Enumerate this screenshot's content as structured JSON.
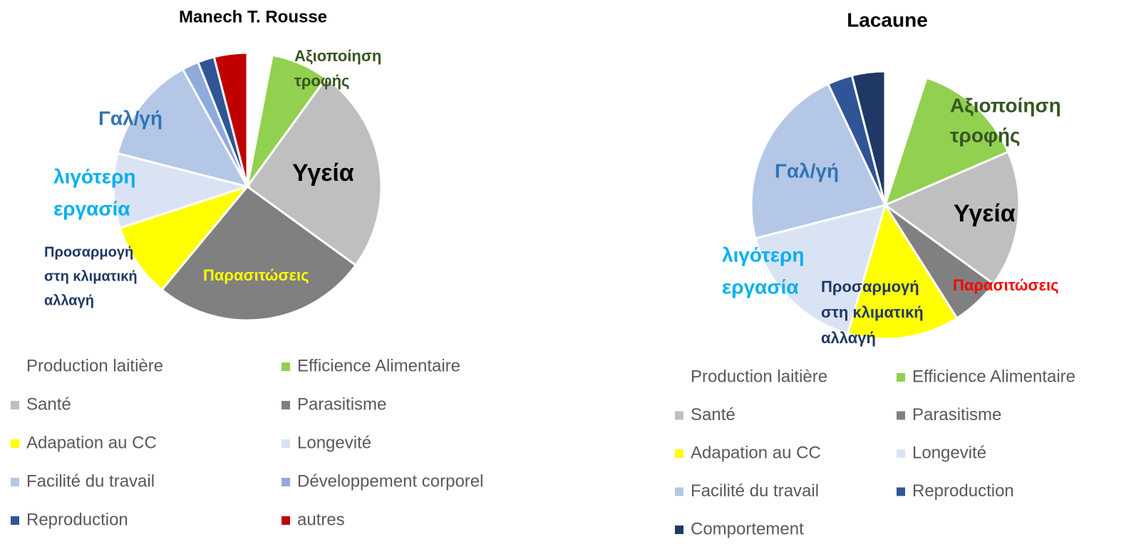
{
  "chart_data": [
    {
      "type": "pie",
      "title": "Manech T. Rousse",
      "categories": [
        "Production laitière",
        "Efficience Alimentaire",
        "Santé",
        "Parasitisme",
        "Adapation au CC",
        "Longevité",
        "Facilité du travail",
        "Développement corporel",
        "Reproduction",
        "autres"
      ],
      "values": [
        3,
        7,
        25,
        26,
        9,
        9,
        13,
        2,
        2,
        4
      ],
      "colors": [
        "#ffffff",
        "#92d050",
        "#bfbfbf",
        "#808080",
        "#ffff00",
        "#dae3f3",
        "#b4c7e7",
        "#8faadc",
        "#2f5597",
        "#c00000"
      ],
      "annotations": [
        {
          "lines": [
            "Αξιοποίηση",
            "τροφής"
          ],
          "color": "#375623"
        },
        {
          "lines": [
            "Υγεία"
          ],
          "color": "#000000"
        },
        {
          "lines": [
            "Γαλ/γή"
          ],
          "color": "#2e75b6"
        },
        {
          "lines": [
            "λιγότερη",
            "εργασία"
          ],
          "color": "#00b0f0"
        },
        {
          "lines": [
            "Προσαρμογή",
            "στη κλιματική",
            "αλλαγή"
          ],
          "color": "#1f3864"
        },
        {
          "lines": [
            "Παρασιτώσεις"
          ],
          "color": "#ffff00"
        }
      ]
    },
    {
      "type": "pie",
      "title": "Lacaune",
      "categories": [
        "Production laitière",
        "Efficience Alimentaire",
        "Santé",
        "Parasitisme",
        "Adapation au CC",
        "Longevité",
        "Facilité du travail",
        "Reproduction",
        "Comportement"
      ],
      "values": [
        5,
        13.5,
        16.5,
        6,
        13.5,
        16.5,
        22,
        3,
        4
      ],
      "colors": [
        "#ffffff",
        "#92d050",
        "#bfbfbf",
        "#808080",
        "#ffff00",
        "#dae3f3",
        "#b4c7e7",
        "#2f5597",
        "#203864"
      ],
      "annotations": [
        {
          "lines": [
            "Αξιοποίηση",
            "τροφής"
          ],
          "color": "#375623"
        },
        {
          "lines": [
            "Υγεία"
          ],
          "color": "#000000"
        },
        {
          "lines": [
            "Γαλ/γή"
          ],
          "color": "#2e75b6"
        },
        {
          "lines": [
            "λιγότερη",
            "εργασία"
          ],
          "color": "#00b0f0"
        },
        {
          "lines": [
            "Προσαρμογή",
            "στη κλιματική",
            "αλλαγή"
          ],
          "color": "#1f3864"
        },
        {
          "lines": [
            "Παρασιτώσεις"
          ],
          "color": "#ff0000"
        }
      ]
    }
  ]
}
